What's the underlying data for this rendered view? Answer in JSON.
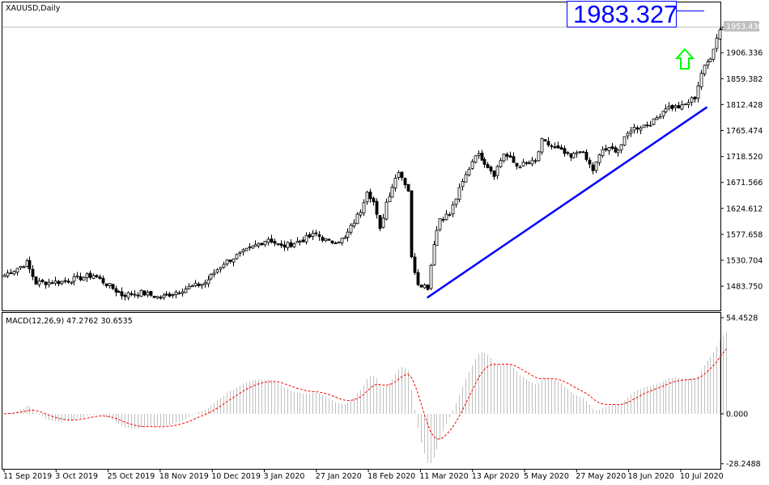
{
  "symbol_label": "XAUUSD,Daily",
  "price_label": "1983.327",
  "current_price": "1953.430",
  "price_axis": [
    "1906.336",
    "1859.382",
    "1812.428",
    "1765.474",
    "1718.520",
    "1671.566",
    "1624.612",
    "1577.658",
    "1530.704",
    "1483.750"
  ],
  "macd_label": "MACD(12,26,9) 47.2762 30.6535",
  "macd_axis": [
    "54.4528",
    "0.000",
    "-28.2488"
  ],
  "date_axis": [
    "11 Sep 2019",
    "3 Oct 2019",
    "25 Oct 2019",
    "18 Nov 2019",
    "10 Dec 2019",
    "3 Jan 2020",
    "27 Jan 2020",
    "18 Feb 2020",
    "11 Mar 2020",
    "13 Apr 2020",
    "5 May 2020",
    "27 May 2020",
    "18 Jun 2020",
    "10 Jul 2020"
  ],
  "colors": {
    "label": "#0000ff",
    "trendline": "#0000ff",
    "arrow": "#00ff00",
    "histogram": "#c0c0c0",
    "signal": "#ff0000",
    "current_price_bg": "#c0c0c0"
  },
  "icons": {
    "arrow": "up-arrow-icon"
  },
  "chart_data": {
    "type": "candlestick",
    "price_range": [
      1455,
      1975
    ],
    "approx_close_path": [
      [
        "11 Sep 2019",
        1504
      ],
      [
        "20 Sep 2019",
        1526
      ],
      [
        "25 Sep 2019",
        1490
      ],
      [
        "7 Oct 2019",
        1492
      ],
      [
        "21 Oct 2019",
        1504
      ],
      [
        "1 Nov 2019",
        1468
      ],
      [
        "11 Nov 2019",
        1472
      ],
      [
        "19 Nov 2019",
        1463
      ],
      [
        "28 Nov 2019",
        1478
      ],
      [
        "9 Dec 2019",
        1490
      ],
      [
        "17 Dec 2019",
        1526
      ],
      [
        "6 Jan 2020",
        1570
      ],
      [
        "10 Jan 2020",
        1555
      ],
      [
        "20 Jan 2020",
        1566
      ],
      [
        "27 Jan 2020",
        1578
      ],
      [
        "31 Jan 2020",
        1563
      ],
      [
        "7 Feb 2020",
        1570
      ],
      [
        "14 Feb 2020",
        1621
      ],
      [
        "18 Feb 2020",
        1658
      ],
      [
        "20 Feb 2020",
        1636
      ],
      [
        "24 Feb 2020",
        1585
      ],
      [
        "26 Feb 2020",
        1636
      ],
      [
        "3 Mar 2020",
        1694
      ],
      [
        "6 Mar 2020",
        1658
      ],
      [
        "9 Mar 2020",
        1534
      ],
      [
        "11 Mar 2020",
        1490
      ],
      [
        "16 Mar 2020",
        1482
      ],
      [
        "18 Mar 2020",
        1563
      ],
      [
        "20 Mar 2020",
        1607
      ],
      [
        "25 Mar 2020",
        1614
      ],
      [
        "30 Mar 2020",
        1658
      ],
      [
        "6 Apr 2020",
        1724
      ],
      [
        "8 Apr 2020",
        1716
      ],
      [
        "14 Apr 2020",
        1687
      ],
      [
        "17 Apr 2020",
        1724
      ],
      [
        "23 Apr 2020",
        1702
      ],
      [
        "1 May 2020",
        1709
      ],
      [
        "5 May 2020",
        1746
      ],
      [
        "12 May 2020",
        1731
      ],
      [
        "18 May 2020",
        1716
      ],
      [
        "21 May 2020",
        1731
      ],
      [
        "27 May 2020",
        1694
      ],
      [
        "1 Jun 2020",
        1731
      ],
      [
        "8 Jun 2020",
        1731
      ],
      [
        "12 Jun 2020",
        1768
      ],
      [
        "18 Jun 2020",
        1775
      ],
      [
        "23 Jun 2020",
        1782
      ],
      [
        "29 Jun 2020",
        1808
      ],
      [
        "6 Jul 2020",
        1808
      ],
      [
        "10 Jul 2020",
        1826
      ],
      [
        "14 Jul 2020",
        1870
      ],
      [
        "17 Jul 2020",
        1899
      ],
      [
        "22 Jul 2020",
        1950
      ],
      [
        "24 Jul 2020",
        1958
      ]
    ],
    "trendline": {
      "from": [
        "16 Mar 2020",
        1463
      ],
      "to": [
        "16 Jul 2020",
        1808
      ]
    },
    "macd": {
      "fast": 12,
      "slow": 26,
      "signal": 9,
      "main": 47.2762,
      "signal_value": 30.6535,
      "range": [
        -28.2488,
        54.4528
      ]
    }
  }
}
